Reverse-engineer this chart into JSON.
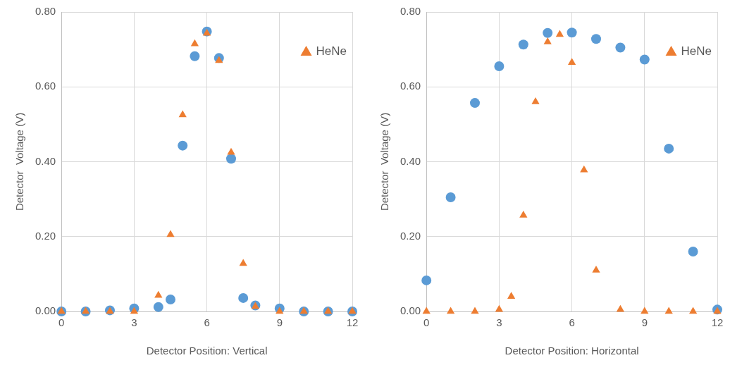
{
  "chart_data": [
    {
      "type": "scatter",
      "xlabel": "Detector Position: Vertical",
      "ylabel": "Detector  Voltage (V)",
      "xlim": [
        0,
        12
      ],
      "xticks": [
        0,
        3,
        6,
        9,
        12
      ],
      "ylim": [
        0,
        0.8
      ],
      "yticks": [
        {
          "value": 0,
          "label": "0.00"
        },
        {
          "value": 0.2,
          "label": "0.20"
        },
        {
          "value": 0.4,
          "label": "0.40"
        },
        {
          "value": 0.6,
          "label": "0.60"
        },
        {
          "value": 0.8,
          "label": "0.80"
        }
      ],
      "grid": true,
      "legend": "top right",
      "series": [
        {
          "color": "#5b9bd5",
          "marker": "circle",
          "x": [
            0,
            1,
            2,
            3,
            4,
            4.5,
            5,
            5.5,
            6,
            6.5,
            7,
            7.5,
            8,
            9,
            10,
            11,
            12
          ],
          "values": [
            0,
            0,
            0.003,
            0.008,
            0.012,
            0.032,
            0.443,
            0.682,
            0.748,
            0.677,
            0.408,
            0.036,
            0.016,
            0.008,
            0,
            0,
            0
          ]
        },
        {
          "name": "HeNe",
          "color": "#ed7d31",
          "marker": "triangle",
          "x": [
            0,
            1,
            2,
            3,
            4,
            4.5,
            5,
            5.5,
            6,
            6.5,
            7,
            7.5,
            8,
            9,
            10,
            11,
            12
          ],
          "values": [
            0,
            0,
            0,
            0,
            0.043,
            0.205,
            0.525,
            0.715,
            0.743,
            0.67,
            0.425,
            0.128,
            0.013,
            0,
            0,
            0,
            0
          ]
        }
      ]
    },
    {
      "type": "scatter",
      "xlabel": "Detector Position: Horizontal",
      "ylabel": "Detector  Voltage (V)",
      "xlim": [
        0,
        12
      ],
      "xticks": [
        0,
        3,
        6,
        9,
        12
      ],
      "ylim": [
        0,
        0.8
      ],
      "yticks": [
        {
          "value": 0,
          "label": "0.00"
        },
        {
          "value": 0.2,
          "label": "0.20"
        },
        {
          "value": 0.4,
          "label": "0.40"
        },
        {
          "value": 0.6,
          "label": "0.60"
        },
        {
          "value": 0.8,
          "label": "0.80"
        }
      ],
      "grid": true,
      "legend": "top right",
      "series": [
        {
          "color": "#5b9bd5",
          "marker": "circle",
          "x": [
            0,
            1,
            2,
            3,
            4,
            5,
            6,
            7,
            8,
            9,
            10,
            11,
            12
          ],
          "values": [
            0.083,
            0.305,
            0.557,
            0.655,
            0.713,
            0.744,
            0.745,
            0.728,
            0.705,
            0.673,
            0.435,
            0.16,
            0.005
          ]
        },
        {
          "name": "HeNe",
          "color": "#ed7d31",
          "marker": "triangle",
          "x": [
            0,
            1,
            2,
            3,
            3.5,
            4,
            4.5,
            5,
            5.5,
            6,
            6.5,
            7,
            8,
            9,
            10,
            11,
            12
          ],
          "values": [
            0,
            0,
            0,
            0.005,
            0.04,
            0.257,
            0.56,
            0.72,
            0.74,
            0.665,
            0.378,
            0.11,
            0.005,
            0,
            0,
            0,
            0
          ]
        }
      ]
    }
  ]
}
